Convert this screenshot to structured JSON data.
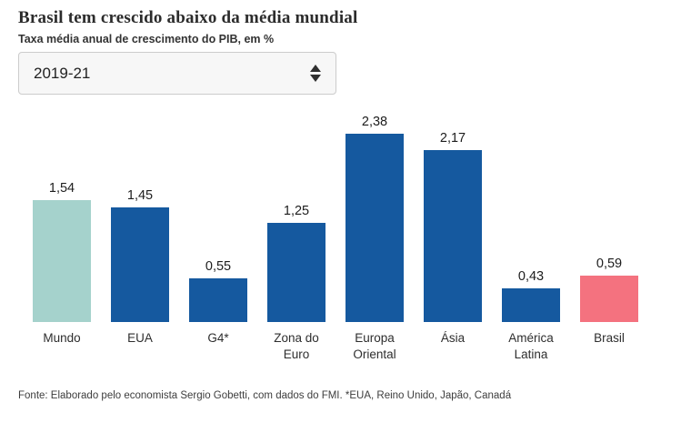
{
  "header": {
    "title": "Brasil tem crescido abaixo da média mundial",
    "subtitle": "Taxa média anual de crescimento do PIB, em %"
  },
  "period_selector": {
    "value": "2019-21"
  },
  "chart_data": {
    "type": "bar",
    "title": "Brasil tem crescido abaixo da média mundial",
    "subtitle": "Taxa média anual de crescimento do PIB, em %",
    "categories": [
      "Mundo",
      "EUA",
      "G4*",
      "Zona do Euro",
      "Europa Oriental",
      "Ásia",
      "América Latina",
      "Brasil"
    ],
    "values": [
      1.54,
      1.45,
      0.55,
      1.25,
      2.38,
      2.17,
      0.43,
      0.59
    ],
    "value_labels": [
      "1,54",
      "1,45",
      "0,55",
      "1,25",
      "2,38",
      "2,17",
      "0,43",
      "0,59"
    ],
    "bar_colors": [
      "#a5d2cc",
      "#15599f",
      "#15599f",
      "#15599f",
      "#15599f",
      "#15599f",
      "#15599f",
      "#f4727f"
    ],
    "colors": {
      "default_bar": "#15599f",
      "world_highlight": "#a5d2cc",
      "brasil_highlight": "#f4727f"
    },
    "xlabel": "",
    "ylabel": "Taxa média anual de crescimento do PIB, em %",
    "ylim": [
      0,
      2.6
    ],
    "grid": false,
    "legend": false,
    "value_label_position": "above-bar",
    "axis_lines": false
  },
  "footer": {
    "source": "Fonte: Elaborado pelo economista Sergio Gobetti, com dados do FMI. *EUA, Reino Unido, Japão, Canadá"
  }
}
